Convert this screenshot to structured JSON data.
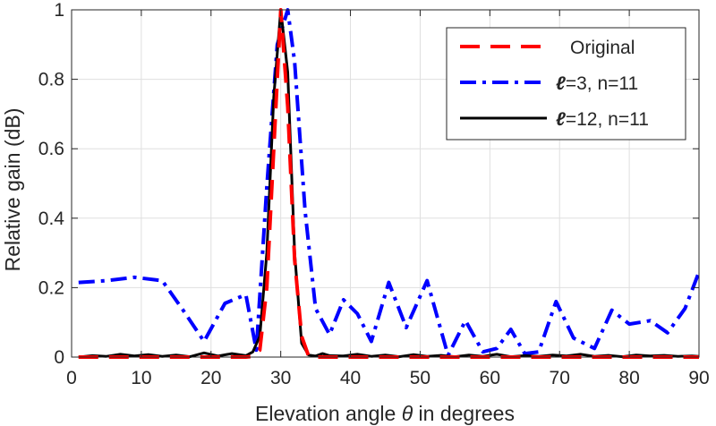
{
  "chart_data": {
    "type": "line",
    "title": "",
    "xlabel_prefix": "Elevation angle ",
    "xlabel_symbol": "θ",
    "xlabel_suffix": " in degrees",
    "ylabel": "Relative gain (dB)",
    "xlim": [
      0,
      90
    ],
    "ylim": [
      0,
      1
    ],
    "xticks": [
      0,
      10,
      20,
      30,
      40,
      50,
      60,
      70,
      80,
      90
    ],
    "yticks": [
      0,
      0.2,
      0.4,
      0.6,
      0.8,
      1
    ],
    "ytick_labels": [
      "0",
      "0.2",
      "0.4",
      "0.6",
      "0.8",
      "1"
    ],
    "grid": true,
    "legend_position": "top-right",
    "series": [
      {
        "name": "Original",
        "legend_symbol": "",
        "legend_rest": "Original",
        "color": "#ff0000",
        "style": "dashed",
        "x": [
          1,
          3,
          5,
          7,
          9,
          11,
          13,
          15,
          17,
          19,
          21,
          23,
          25,
          26,
          27,
          28,
          29,
          30,
          31,
          32,
          33,
          34,
          35,
          37,
          39,
          41,
          43,
          45,
          47,
          49,
          51,
          53,
          55,
          57,
          59,
          61,
          63,
          65,
          67,
          69,
          71,
          73,
          75,
          77,
          79,
          81,
          83,
          85,
          87,
          89,
          90
        ],
        "y": [
          0,
          0,
          0,
          0,
          0,
          0,
          0,
          0,
          0,
          0,
          0,
          0,
          0,
          0.002,
          0.02,
          0.2,
          0.6,
          1,
          0.72,
          0.28,
          0.06,
          0.003,
          0,
          0,
          0,
          0,
          0,
          0,
          0,
          0,
          0,
          0,
          0,
          0,
          0,
          0,
          0,
          0,
          0,
          0,
          0,
          0,
          0,
          0,
          0,
          0,
          0,
          0,
          0,
          0,
          0
        ]
      },
      {
        "name": "ℓ=3, n=11",
        "legend_symbol": "ℓ",
        "legend_rest": "=3, n=11",
        "color": "#0000ff",
        "style": "dashdot",
        "x": [
          1,
          5,
          9,
          13,
          16,
          19,
          22,
          25,
          26.5,
          28,
          29.5,
          31,
          32,
          33.5,
          35,
          37,
          39,
          41,
          43,
          45.5,
          48,
          51,
          54,
          56.5,
          59,
          61,
          63,
          65,
          67,
          69.5,
          72,
          75,
          77.5,
          80,
          83,
          85.5,
          88,
          90
        ],
        "y": [
          0.215,
          0.22,
          0.23,
          0.22,
          0.135,
          0.045,
          0.155,
          0.18,
          0.02,
          0.49,
          0.9,
          1,
          0.85,
          0.42,
          0.14,
          0.065,
          0.165,
          0.125,
          0.045,
          0.215,
          0.085,
          0.22,
          0.005,
          0.105,
          0.015,
          0.025,
          0.08,
          0.01,
          0.015,
          0.16,
          0.055,
          0.025,
          0.135,
          0.095,
          0.105,
          0.07,
          0.14,
          0.245
        ]
      },
      {
        "name": "ℓ=12, n=11",
        "legend_symbol": "ℓ",
        "legend_rest": "=12, n=11",
        "color": "#000000",
        "style": "solid",
        "x": [
          1,
          3,
          5,
          7,
          9,
          11,
          13,
          15,
          17,
          19,
          21,
          23,
          25,
          26,
          27,
          28,
          29,
          30,
          31,
          32,
          33,
          34,
          35,
          36,
          37,
          39,
          41,
          43,
          45,
          47,
          49,
          51,
          53,
          55,
          57,
          59,
          61,
          63,
          65,
          67,
          69,
          71,
          73,
          75,
          77,
          79,
          81,
          83,
          85,
          87,
          89,
          90
        ],
        "y": [
          0,
          0.004,
          0.002,
          0.008,
          0.003,
          0.007,
          0.002,
          0.006,
          0.001,
          0.012,
          0.003,
          0.01,
          0.004,
          0.015,
          0.06,
          0.3,
          0.75,
          1,
          0.82,
          0.3,
          0.04,
          0.006,
          0.003,
          0.01,
          0.004,
          0.003,
          0.008,
          0.002,
          0.006,
          0.001,
          0.007,
          0.002,
          0.005,
          0.001,
          0.006,
          0.002,
          0.008,
          0.001,
          0.004,
          0.002,
          0.006,
          0.003,
          0.008,
          0.002,
          0.005,
          0.001,
          0.006,
          0.003,
          0.005,
          0.002,
          0.003,
          0.002
        ]
      }
    ]
  }
}
